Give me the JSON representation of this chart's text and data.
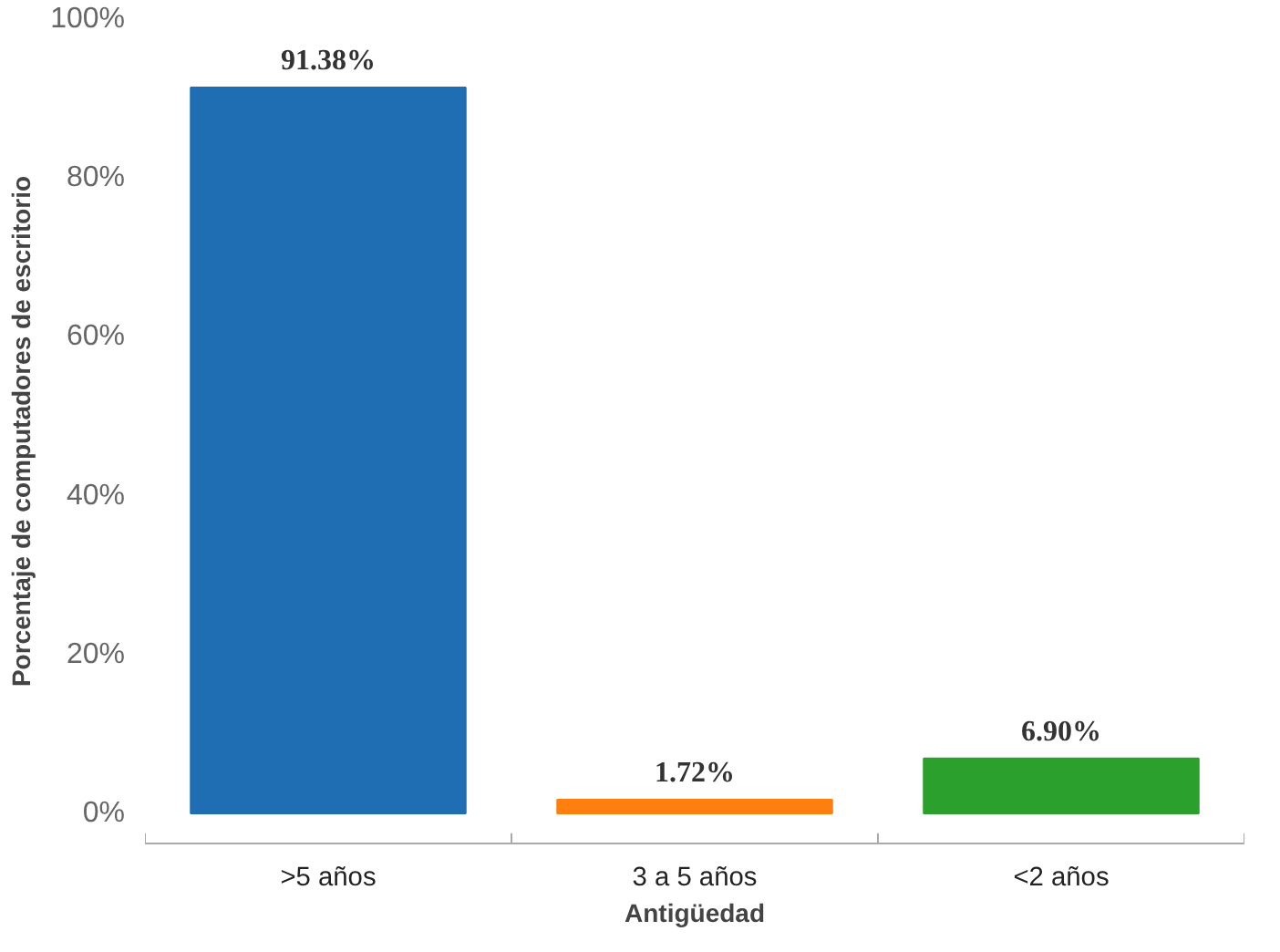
{
  "chart_data": {
    "type": "bar",
    "categories": [
      ">5 años",
      "3 a 5 años",
      "<2 años"
    ],
    "values": [
      91.38,
      1.72,
      6.9
    ],
    "colors": [
      "#1f6eb4",
      "#ff7f0e",
      "#2ca02c"
    ],
    "value_labels": [
      "91.38%",
      "1.72%",
      "6.90%"
    ],
    "xlabel": "Antigüedad",
    "ylabel": "Porcentaje de computadores de escritorio",
    "ylim": [
      -2.5,
      100
    ],
    "yticks": [
      {
        "value": 0,
        "label": "0%"
      },
      {
        "value": 20,
        "label": "20%"
      },
      {
        "value": 40,
        "label": "40%"
      },
      {
        "value": 60,
        "label": "60%"
      },
      {
        "value": 80,
        "label": "80%"
      },
      {
        "value": 100,
        "label": "100%"
      }
    ],
    "grid": false
  }
}
